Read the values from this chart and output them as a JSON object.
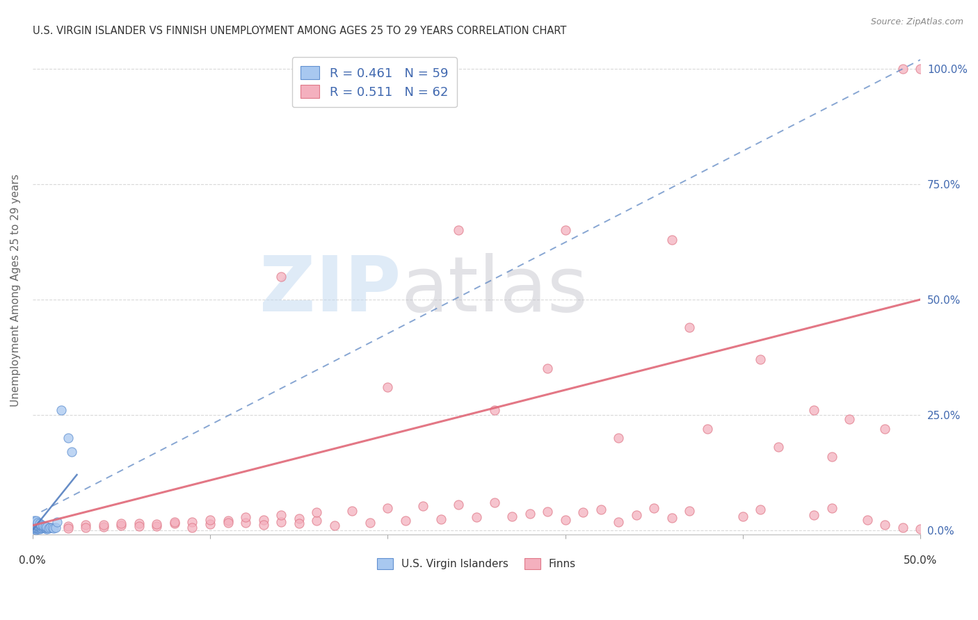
{
  "title": "U.S. VIRGIN ISLANDER VS FINNISH UNEMPLOYMENT AMONG AGES 25 TO 29 YEARS CORRELATION CHART",
  "source": "Source: ZipAtlas.com",
  "ylabel": "Unemployment Among Ages 25 to 29 years",
  "xlim": [
    0.0,
    0.5
  ],
  "ylim": [
    -0.01,
    1.05
  ],
  "xticklabels_outer": [
    "0.0%",
    "50.0%"
  ],
  "yticks_right": [
    0.0,
    0.25,
    0.5,
    0.75,
    1.0
  ],
  "yticklabels_right": [
    "0.0%",
    "25.0%",
    "50.0%",
    "75.0%",
    "100.0%"
  ],
  "legend_entries": [
    {
      "label": "R = 0.461   N = 59",
      "color": "#a8c8f0"
    },
    {
      "label": "R = 0.511   N = 62",
      "color": "#f4a0b0"
    }
  ],
  "legend_label_us": "U.S. Virgin Islanders",
  "legend_label_fi": "Finns",
  "blue_color": "#a8c8f0",
  "blue_edge_color": "#6090d0",
  "blue_line_color": "#5580c0",
  "blue_solid_line": {
    "x": [
      0.0,
      0.025
    ],
    "y": [
      0.0,
      0.12
    ]
  },
  "blue_dash_line": {
    "x": [
      0.005,
      0.5
    ],
    "y": [
      0.04,
      1.02
    ]
  },
  "pink_color": "#f4b0be",
  "pink_edge_color": "#e07888",
  "pink_line_color": "#e06878",
  "pink_trend": {
    "x": [
      0.0,
      0.5
    ],
    "y": [
      0.01,
      0.5
    ]
  },
  "bg_color": "#ffffff",
  "grid_color": "#d0d0d0",
  "title_color": "#333333",
  "right_tick_color": "#4169b0",
  "watermark_zip_color": "#c0d8f0",
  "watermark_atlas_color": "#c0c0c8",
  "scatter_us_main": [
    [
      0.001,
      0.002
    ],
    [
      0.001,
      0.003
    ],
    [
      0.002,
      0.001
    ],
    [
      0.002,
      0.004
    ],
    [
      0.001,
      0.005
    ],
    [
      0.003,
      0.002
    ],
    [
      0.002,
      0.006
    ],
    [
      0.003,
      0.004
    ],
    [
      0.001,
      0.007
    ],
    [
      0.004,
      0.003
    ],
    [
      0.002,
      0.008
    ],
    [
      0.003,
      0.006
    ],
    [
      0.001,
      0.009
    ],
    [
      0.004,
      0.005
    ],
    [
      0.002,
      0.01
    ],
    [
      0.003,
      0.008
    ],
    [
      0.001,
      0.011
    ],
    [
      0.004,
      0.007
    ],
    [
      0.002,
      0.012
    ],
    [
      0.005,
      0.004
    ],
    [
      0.001,
      0.013
    ],
    [
      0.003,
      0.01
    ],
    [
      0.002,
      0.014
    ],
    [
      0.004,
      0.009
    ],
    [
      0.001,
      0.015
    ],
    [
      0.005,
      0.006
    ],
    [
      0.002,
      0.015
    ],
    [
      0.003,
      0.012
    ],
    [
      0.001,
      0.016
    ],
    [
      0.004,
      0.011
    ],
    [
      0.002,
      0.017
    ],
    [
      0.005,
      0.008
    ],
    [
      0.001,
      0.018
    ],
    [
      0.003,
      0.014
    ],
    [
      0.002,
      0.019
    ],
    [
      0.004,
      0.013
    ],
    [
      0.001,
      0.02
    ],
    [
      0.005,
      0.01
    ],
    [
      0.002,
      0.02
    ],
    [
      0.003,
      0.016
    ],
    [
      0.006,
      0.005
    ],
    [
      0.004,
      0.015
    ],
    [
      0.007,
      0.004
    ],
    [
      0.005,
      0.012
    ],
    [
      0.008,
      0.003
    ],
    [
      0.006,
      0.008
    ],
    [
      0.007,
      0.006
    ],
    [
      0.008,
      0.005
    ],
    [
      0.006,
      0.01
    ],
    [
      0.007,
      0.008
    ],
    [
      0.008,
      0.007
    ],
    [
      0.009,
      0.004
    ],
    [
      0.01,
      0.005
    ],
    [
      0.011,
      0.006
    ],
    [
      0.012,
      0.004
    ],
    [
      0.013,
      0.005
    ],
    [
      0.014,
      0.017
    ],
    [
      0.016,
      0.26
    ],
    [
      0.02,
      0.2
    ],
    [
      0.022,
      0.17
    ]
  ],
  "scatter_fi_data": [
    [
      0.01,
      0.005
    ],
    [
      0.02,
      0.008
    ],
    [
      0.03,
      0.012
    ],
    [
      0.04,
      0.007
    ],
    [
      0.05,
      0.01
    ],
    [
      0.06,
      0.015
    ],
    [
      0.07,
      0.009
    ],
    [
      0.08,
      0.014
    ],
    [
      0.09,
      0.018
    ],
    [
      0.1,
      0.013
    ],
    [
      0.11,
      0.02
    ],
    [
      0.12,
      0.016
    ],
    [
      0.13,
      0.022
    ],
    [
      0.14,
      0.018
    ],
    [
      0.15,
      0.025
    ],
    [
      0.16,
      0.02
    ],
    [
      0.02,
      0.004
    ],
    [
      0.03,
      0.006
    ],
    [
      0.04,
      0.011
    ],
    [
      0.05,
      0.015
    ],
    [
      0.06,
      0.008
    ],
    [
      0.07,
      0.013
    ],
    [
      0.08,
      0.018
    ],
    [
      0.09,
      0.006
    ],
    [
      0.1,
      0.022
    ],
    [
      0.11,
      0.016
    ],
    [
      0.12,
      0.028
    ],
    [
      0.13,
      0.012
    ],
    [
      0.14,
      0.032
    ],
    [
      0.15,
      0.014
    ],
    [
      0.16,
      0.038
    ],
    [
      0.17,
      0.01
    ],
    [
      0.18,
      0.042
    ],
    [
      0.19,
      0.016
    ],
    [
      0.2,
      0.048
    ],
    [
      0.21,
      0.02
    ],
    [
      0.22,
      0.052
    ],
    [
      0.23,
      0.024
    ],
    [
      0.24,
      0.055
    ],
    [
      0.25,
      0.028
    ],
    [
      0.26,
      0.06
    ],
    [
      0.27,
      0.03
    ],
    [
      0.28,
      0.035
    ],
    [
      0.29,
      0.04
    ],
    [
      0.3,
      0.022
    ],
    [
      0.31,
      0.038
    ],
    [
      0.32,
      0.044
    ],
    [
      0.33,
      0.018
    ],
    [
      0.34,
      0.032
    ],
    [
      0.35,
      0.048
    ],
    [
      0.36,
      0.026
    ],
    [
      0.37,
      0.042
    ],
    [
      0.4,
      0.03
    ],
    [
      0.41,
      0.044
    ],
    [
      0.44,
      0.032
    ],
    [
      0.45,
      0.048
    ],
    [
      0.47,
      0.022
    ],
    [
      0.48,
      0.012
    ],
    [
      0.49,
      0.005
    ],
    [
      0.5,
      0.003
    ],
    [
      0.14,
      0.55
    ],
    [
      0.24,
      0.65
    ]
  ],
  "scatter_fi_outliers": [
    [
      0.3,
      0.65
    ],
    [
      0.36,
      0.63
    ],
    [
      0.37,
      0.44
    ],
    [
      0.29,
      0.35
    ],
    [
      0.38,
      0.22
    ],
    [
      0.33,
      0.2
    ],
    [
      0.41,
      0.37
    ],
    [
      0.44,
      0.26
    ],
    [
      0.46,
      0.24
    ],
    [
      0.5,
      1.0
    ],
    [
      0.49,
      1.0
    ],
    [
      0.42,
      0.18
    ],
    [
      0.45,
      0.16
    ],
    [
      0.48,
      0.22
    ],
    [
      0.26,
      0.26
    ],
    [
      0.2,
      0.31
    ]
  ]
}
